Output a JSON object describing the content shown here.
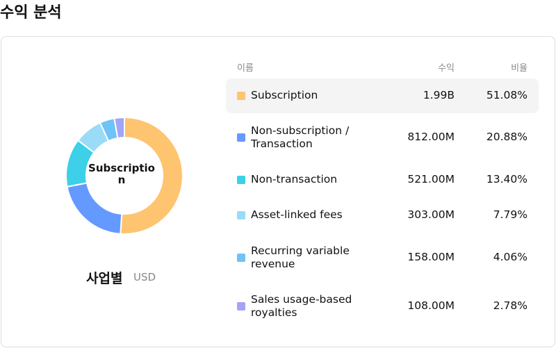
{
  "title": "수익 분석",
  "chart_data": {
    "type": "donut",
    "center_label": "Subscription",
    "caption": "사업별",
    "unit": "USD",
    "categories": [
      "Subscription",
      "Non-subscription / Transaction",
      "Non-transaction",
      "Asset-linked fees",
      "Recurring variable revenue",
      "Sales usage-based royalties"
    ],
    "values": [
      51.08,
      20.88,
      13.4,
      7.79,
      4.06,
      2.78
    ],
    "value_labels": [
      "51.08%",
      "20.88%",
      "13.40%",
      "7.79%",
      "4.06%",
      "2.78%"
    ],
    "colors": [
      "#ffc470",
      "#6499ff",
      "#3dd0e8",
      "#9adcf8",
      "#6ec3f7",
      "#a3a4f6"
    ],
    "highlight": 0
  },
  "table": {
    "headers": [
      "이름",
      "수익",
      "비율"
    ],
    "revenue": [
      "1.99B",
      "812.00M",
      "521.00M",
      "303.00M",
      "158.00M",
      "108.00M"
    ]
  }
}
